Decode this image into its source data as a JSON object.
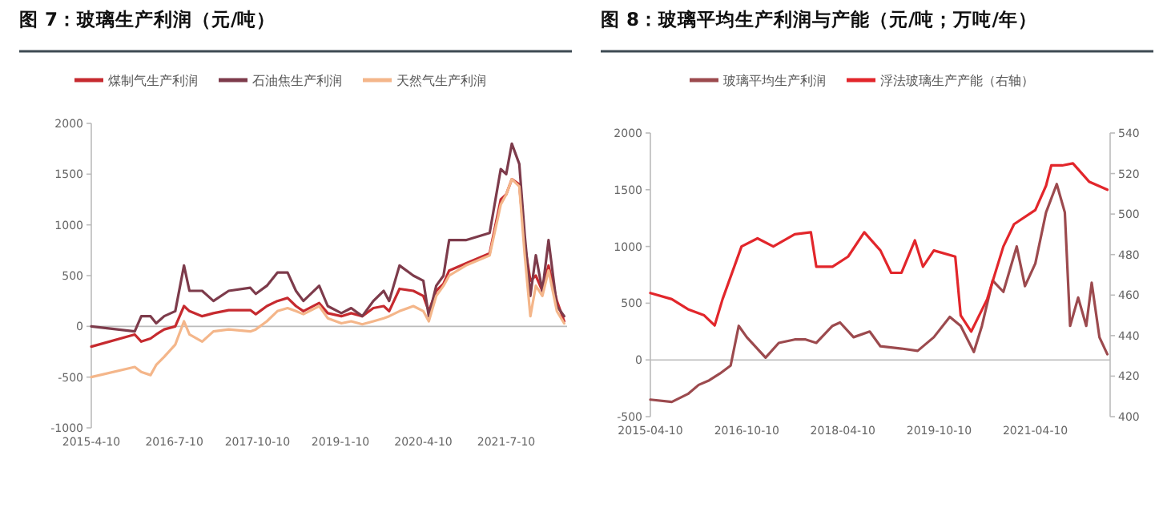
{
  "chart_data": [
    {
      "type": "line",
      "title": "图 7：玻璃生产利润（元/吨）",
      "legend": "top",
      "xlim": [
        "2015-04-10",
        "2022-06-10"
      ],
      "xticks": [
        {
          "value": "2015-04-10",
          "label": "2015-4-10"
        },
        {
          "value": "2016-07-10",
          "label": "2016-7-10"
        },
        {
          "value": "2017-10-10",
          "label": "2017-10-10"
        },
        {
          "value": "2019-01-10",
          "label": "2019-1-10"
        },
        {
          "value": "2020-04-10",
          "label": "2020-4-10"
        },
        {
          "value": "2021-07-10",
          "label": "2021-7-10"
        }
      ],
      "ylim": [
        -1000,
        2000
      ],
      "yticks": [
        -1000,
        -500,
        0,
        500,
        1000,
        1500,
        2000
      ],
      "x": [
        "2015-04-10",
        "2015-12-05",
        "2016-01-10",
        "2016-03-01",
        "2016-04-01",
        "2016-05-15",
        "2016-07-15",
        "2016-09-01",
        "2016-10-01",
        "2016-12-10",
        "2017-02-10",
        "2017-05-05",
        "2017-09-01",
        "2017-10-01",
        "2017-12-01",
        "2018-01-28",
        "2018-03-25",
        "2018-05-10",
        "2018-06-20",
        "2018-09-15",
        "2018-11-01",
        "2019-01-15",
        "2019-03-10",
        "2019-05-10",
        "2019-07-10",
        "2019-09-05",
        "2019-10-05",
        "2019-12-01",
        "2020-02-15",
        "2020-04-10",
        "2020-05-10",
        "2020-06-20",
        "2020-07-30",
        "2020-08-30",
        "2020-11-30",
        "2021-04-10",
        "2021-06-10",
        "2021-07-10",
        "2021-08-10",
        "2021-09-20",
        "2021-10-20",
        "2021-11-20",
        "2021-12-20",
        "2022-01-25",
        "2022-02-28",
        "2022-04-15",
        "2022-05-25"
      ],
      "series": [
        {
          "name": "煤制气生产利润",
          "color": "#c62a2f",
          "values": [
            -200,
            -80,
            -150,
            -120,
            -80,
            -30,
            0,
            200,
            150,
            100,
            130,
            160,
            160,
            120,
            200,
            250,
            280,
            200,
            150,
            230,
            130,
            100,
            130,
            100,
            180,
            200,
            150,
            370,
            350,
            300,
            150,
            350,
            420,
            550,
            620,
            720,
            1250,
            1300,
            1450,
            1400,
            800,
            450,
            500,
            350,
            600,
            250,
            50
          ]
        },
        {
          "name": "石油焦生产利润",
          "color": "#7d3b4b",
          "values": [
            0,
            -50,
            100,
            100,
            30,
            100,
            150,
            600,
            350,
            350,
            250,
            350,
            380,
            320,
            400,
            530,
            530,
            350,
            250,
            400,
            200,
            130,
            180,
            100,
            250,
            350,
            250,
            600,
            500,
            450,
            100,
            400,
            500,
            850,
            850,
            920,
            1550,
            1500,
            1800,
            1600,
            900,
            300,
            700,
            350,
            850,
            200,
            100
          ]
        },
        {
          "name": "天然气生产利润",
          "color": "#f4b68a",
          "values": [
            -500,
            -400,
            -450,
            -480,
            -380,
            -300,
            -180,
            50,
            -80,
            -150,
            -50,
            -30,
            -50,
            -30,
            50,
            150,
            180,
            150,
            120,
            200,
            80,
            30,
            50,
            20,
            50,
            80,
            100,
            150,
            200,
            150,
            50,
            300,
            400,
            500,
            600,
            700,
            1200,
            1300,
            1450,
            1380,
            700,
            100,
            400,
            300,
            550,
            150,
            30
          ]
        }
      ]
    },
    {
      "type": "line",
      "title": "图 8：玻璃平均生产利润与产能（元/吨；万吨/年）",
      "legend": "top",
      "xlim": [
        "2015-04-10",
        "2022-06-10"
      ],
      "xticks": [
        {
          "value": "2015-04-10",
          "label": "2015-04-10"
        },
        {
          "value": "2016-10-10",
          "label": "2016-10-10"
        },
        {
          "value": "2018-04-10",
          "label": "2018-04-10"
        },
        {
          "value": "2019-10-10",
          "label": "2019-10-10"
        },
        {
          "value": "2021-04-10",
          "label": "2021-04-10"
        }
      ],
      "ylim": [
        -500,
        2000
      ],
      "yticks": [
        -500,
        0,
        500,
        1000,
        1500,
        2000
      ],
      "y2lim": [
        400,
        540
      ],
      "y2ticks": [
        400,
        420,
        440,
        460,
        480,
        500,
        520,
        540
      ],
      "series": [
        {
          "name": "玻璃平均生产利润",
          "color": "#9c4a4e",
          "x": [
            "2015-04-10",
            "2015-08-10",
            "2015-11-10",
            "2016-01-10",
            "2016-03-10",
            "2016-05-10",
            "2016-07-10",
            "2016-08-25",
            "2016-10-10",
            "2017-01-25",
            "2017-04-10",
            "2017-07-10",
            "2017-09-10",
            "2017-11-10",
            "2018-02-10",
            "2018-03-25",
            "2018-06-10",
            "2018-09-10",
            "2018-11-10",
            "2019-03-10",
            "2019-06-10",
            "2019-09-10",
            "2019-12-10",
            "2020-02-10",
            "2020-04-25",
            "2020-06-10",
            "2020-08-10",
            "2020-10-10",
            "2020-12-25",
            "2021-02-10",
            "2021-04-10",
            "2021-06-10",
            "2021-08-10",
            "2021-09-25",
            "2021-10-25",
            "2021-12-10",
            "2022-01-25",
            "2022-02-25",
            "2022-04-10",
            "2022-05-25"
          ],
          "values": [
            -350,
            -370,
            -300,
            -220,
            -180,
            -120,
            -50,
            300,
            200,
            20,
            150,
            180,
            180,
            150,
            300,
            330,
            200,
            250,
            120,
            100,
            80,
            200,
            380,
            300,
            70,
            300,
            700,
            600,
            1000,
            650,
            850,
            1300,
            1550,
            1300,
            300,
            550,
            300,
            680,
            200,
            50
          ]
        },
        {
          "name": "浮法玻璃生产产能（右轴）",
          "color": "#e2262b",
          "axis": "y2",
          "x": [
            "2015-04-10",
            "2015-08-10",
            "2015-11-10",
            "2016-02-10",
            "2016-04-10",
            "2016-05-25",
            "2016-09-10",
            "2016-12-10",
            "2017-03-10",
            "2017-07-10",
            "2017-10-10",
            "2017-11-10",
            "2018-02-10",
            "2018-05-10",
            "2018-08-10",
            "2018-11-10",
            "2019-01-10",
            "2019-03-10",
            "2019-05-25",
            "2019-07-10",
            "2019-09-10",
            "2020-01-10",
            "2020-02-10",
            "2020-04-10",
            "2020-07-10",
            "2020-10-10",
            "2020-12-10",
            "2021-04-10",
            "2021-06-10",
            "2021-07-10",
            "2021-09-10",
            "2021-11-10",
            "2022-02-10",
            "2022-05-25"
          ],
          "values": [
            461,
            458,
            453,
            450,
            445,
            458,
            484,
            488,
            484,
            490,
            491,
            474,
            474,
            479,
            491,
            482,
            471,
            471,
            487,
            474,
            482,
            479,
            450,
            442,
            458,
            484,
            495,
            502,
            514,
            524,
            524,
            525,
            516,
            512
          ]
        }
      ]
    }
  ]
}
